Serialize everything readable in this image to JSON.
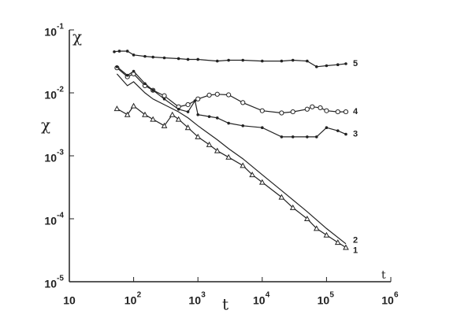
{
  "chart_data": {
    "type": "line",
    "log_x": true,
    "log_y": true,
    "x_label": "t",
    "y_label": "χ",
    "xlim": [
      10,
      1000000
    ],
    "ylim": [
      1e-05,
      0.1
    ],
    "xticks": [
      10,
      {
        "value": 100,
        "label": "10",
        "sup": "2"
      },
      {
        "value": 1000,
        "label": "10",
        "sup": "3"
      },
      {
        "value": 10000,
        "label": "10",
        "sup": "4"
      },
      {
        "value": 100000,
        "label": "10",
        "sup": "5"
      },
      {
        "value": 1000000,
        "label": "10",
        "sup": "6"
      }
    ],
    "yticks": [
      {
        "value": 1e-05,
        "label": "10",
        "sup": "-5"
      },
      {
        "value": 0.0001,
        "label": "10",
        "sup": "-4"
      },
      {
        "value": 0.001,
        "label": "10",
        "sup": "-3"
      },
      {
        "value": 0.01,
        "label": "10",
        "sup": "-2"
      },
      {
        "value": 0.1,
        "label": "10",
        "sup": "-1"
      }
    ],
    "series": [
      {
        "name": "5",
        "color": "#222",
        "marker": "dot",
        "x": [
          50,
          60,
          80,
          100,
          150,
          200,
          300,
          500,
          700,
          1000,
          2000,
          3000,
          5000,
          10000,
          20000,
          30000,
          50000,
          70000,
          100000,
          150000,
          200000
        ],
        "values": [
          0.045,
          0.046,
          0.046,
          0.04,
          0.038,
          0.037,
          0.036,
          0.035,
          0.034,
          0.034,
          0.032,
          0.033,
          0.033,
          0.032,
          0.032,
          0.033,
          0.032,
          0.026,
          0.027,
          0.028,
          0.029
        ]
      },
      {
        "name": "4",
        "color": "#222",
        "marker": "circle",
        "x": [
          55,
          80,
          100,
          150,
          200,
          300,
          500,
          700,
          1000,
          1500,
          2000,
          3000,
          5000,
          10000,
          20000,
          30000,
          50000,
          60000,
          80000,
          100000,
          150000,
          200000
        ],
        "values": [
          0.025,
          0.018,
          0.02,
          0.013,
          0.011,
          0.009,
          0.006,
          0.0065,
          0.008,
          0.0092,
          0.0095,
          0.0093,
          0.007,
          0.0052,
          0.0048,
          0.005,
          0.0055,
          0.006,
          0.0058,
          0.0052,
          0.005,
          0.005
        ]
      },
      {
        "name": "3",
        "color": "#222",
        "marker": "dot",
        "x": [
          55,
          80,
          100,
          150,
          200,
          300,
          500,
          700,
          900,
          1000,
          1500,
          2000,
          3000,
          5000,
          10000,
          20000,
          30000,
          50000,
          70000,
          100000,
          150000,
          200000
        ],
        "values": [
          0.026,
          0.019,
          0.022,
          0.014,
          0.011,
          0.008,
          0.0055,
          0.005,
          0.0075,
          0.0045,
          0.0042,
          0.004,
          0.0033,
          0.003,
          0.0028,
          0.002,
          0.002,
          0.002,
          0.002,
          0.0028,
          0.0025,
          0.0022
        ]
      },
      {
        "name": "2",
        "color": "#222",
        "marker": "none",
        "x": [
          55,
          80,
          100,
          150,
          200,
          300,
          500,
          700,
          1000,
          2000,
          3000,
          5000,
          10000,
          20000,
          50000,
          100000,
          200000
        ],
        "values": [
          0.02,
          0.013,
          0.015,
          0.01,
          0.008,
          0.0065,
          0.005,
          0.004,
          0.003,
          0.0018,
          0.0013,
          0.0009,
          0.0005,
          0.00028,
          0.00013,
          7e-05,
          4e-05
        ]
      },
      {
        "name": "1",
        "color": "#222",
        "marker": "triangle",
        "x": [
          55,
          80,
          100,
          150,
          200,
          300,
          400,
          500,
          700,
          1000,
          1500,
          2000,
          3000,
          5000,
          7000,
          10000,
          20000,
          30000,
          50000,
          70000,
          100000,
          150000,
          200000
        ],
        "values": [
          0.0056,
          0.0045,
          0.0062,
          0.0045,
          0.0038,
          0.003,
          0.0045,
          0.0038,
          0.0028,
          0.002,
          0.0015,
          0.0012,
          0.00095,
          0.0007,
          0.0005,
          0.00038,
          0.00022,
          0.00015,
          0.0001,
          7e-05,
          5.5e-05,
          4.2e-05,
          3.5e-05
        ]
      }
    ]
  }
}
